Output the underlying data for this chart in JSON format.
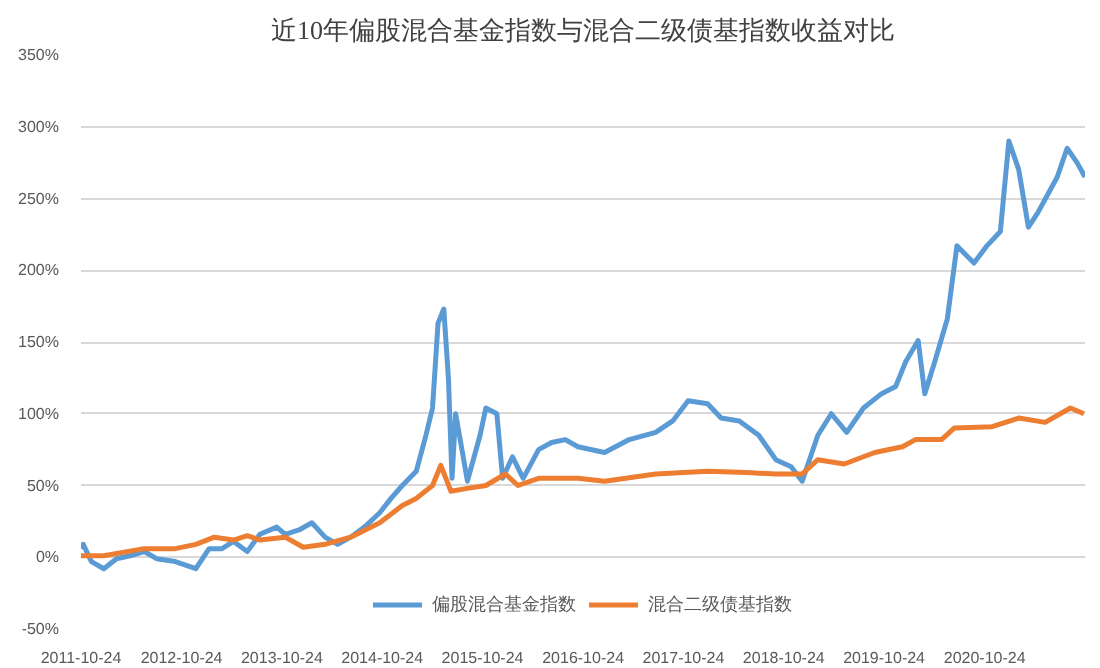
{
  "chart_data": {
    "type": "line",
    "title": "近10年偏股混合基金指数与混合二级债基指数收益对比",
    "xlim": [
      "2011-10-24",
      "2021-10-24"
    ],
    "xticks": [
      "2011-10-24",
      "2012-10-24",
      "2013-10-24",
      "2014-10-24",
      "2015-10-24",
      "2016-10-24",
      "2017-10-24",
      "2018-10-24",
      "2019-10-24",
      "2020-10-24"
    ],
    "ylim": [
      -50,
      350
    ],
    "yticks": [
      {
        "value": -50,
        "label": "-50%"
      },
      {
        "value": 0,
        "label": "0%"
      },
      {
        "value": 50,
        "label": "50%"
      },
      {
        "value": 100,
        "label": "100%"
      },
      {
        "value": 150,
        "label": "150%"
      },
      {
        "value": 200,
        "label": "200%"
      },
      {
        "value": 250,
        "label": "250%"
      },
      {
        "value": 300,
        "label": "300%"
      },
      {
        "value": 350,
        "label": "350%"
      }
    ],
    "grid": "y",
    "legend": "bottom",
    "marker": "none",
    "line_style": "solid",
    "series": [
      {
        "name": "偏股混合基金指数",
        "color": "#5b9bd5",
        "x": [
          "2011-10-24",
          "2011-11-01",
          "2011-12-01",
          "2012-01-15",
          "2012-03-01",
          "2012-04-20",
          "2012-06-10",
          "2012-07-25",
          "2012-10-01",
          "2012-12-15",
          "2013-02-01",
          "2013-03-20",
          "2013-05-01",
          "2013-06-20",
          "2013-08-05",
          "2013-10-05",
          "2013-11-05",
          "2013-12-25",
          "2014-02-10",
          "2014-03-30",
          "2014-05-15",
          "2014-07-01",
          "2014-08-20",
          "2014-10-15",
          "2014-11-25",
          "2015-01-05",
          "2015-02-25",
          "2015-04-01",
          "2015-04-25",
          "2015-05-15",
          "2015-06-05",
          "2015-06-22",
          "2015-07-05",
          "2015-07-18",
          "2015-08-10",
          "2015-08-30",
          "2015-10-15",
          "2015-11-05",
          "2015-12-15",
          "2016-01-05",
          "2016-02-10",
          "2016-03-20",
          "2016-05-15",
          "2016-07-01",
          "2016-08-20",
          "2016-10-05",
          "2017-01-10",
          "2017-04-10",
          "2017-07-15",
          "2017-09-15",
          "2017-11-10",
          "2018-01-20",
          "2018-03-10",
          "2018-05-15",
          "2018-07-25",
          "2018-09-25",
          "2018-11-20",
          "2018-12-30",
          "2019-02-25",
          "2019-04-15",
          "2019-06-10",
          "2019-08-10",
          "2019-10-15",
          "2019-12-05",
          "2020-01-10",
          "2020-02-25",
          "2020-03-20",
          "2020-04-25",
          "2020-06-10",
          "2020-07-15",
          "2020-09-15",
          "2020-11-01",
          "2020-12-20",
          "2021-01-20",
          "2021-02-25",
          "2021-04-01",
          "2021-05-05",
          "2021-07-15",
          "2021-08-20",
          "2021-09-25",
          "2021-10-24"
        ],
        "values": [
          6,
          9,
          -3,
          -8,
          -1,
          1,
          4,
          -1,
          -3,
          -8,
          6,
          6,
          11,
          4,
          16,
          21,
          16,
          19,
          24,
          14,
          9,
          14,
          21,
          31,
          41,
          50,
          60,
          85,
          104,
          163,
          173,
          124,
          55,
          100,
          75,
          53,
          85,
          104,
          100,
          55,
          70,
          55,
          75,
          80,
          82,
          77,
          73,
          82,
          87,
          95,
          109,
          107,
          97,
          95,
          85,
          68,
          63,
          53,
          85,
          100,
          87,
          104,
          114,
          119,
          136,
          151,
          114,
          136,
          166,
          217,
          205,
          217,
          227,
          290,
          270,
          230,
          240,
          265,
          285,
          275,
          265
        ]
      },
      {
        "name": "混合二级债基指数",
        "color": "#ed7d31",
        "x": [
          "2011-10-24",
          "2012-01-15",
          "2012-06-10",
          "2012-10-01",
          "2012-12-15",
          "2013-02-20",
          "2013-05-01",
          "2013-06-20",
          "2013-08-05",
          "2013-11-05",
          "2014-01-10",
          "2014-03-30",
          "2014-07-01",
          "2014-10-15",
          "2015-01-05",
          "2015-02-25",
          "2015-04-25",
          "2015-05-25",
          "2015-07-01",
          "2015-08-30",
          "2015-11-05",
          "2016-01-15",
          "2016-03-01",
          "2016-05-15",
          "2016-08-20",
          "2016-10-05",
          "2017-01-10",
          "2017-07-15",
          "2018-01-20",
          "2018-06-10",
          "2018-09-25",
          "2018-12-30",
          "2019-02-25",
          "2019-06-01",
          "2019-09-20",
          "2019-12-30",
          "2020-02-15",
          "2020-05-20",
          "2020-07-05",
          "2020-11-20",
          "2021-02-25",
          "2021-06-01",
          "2021-09-01",
          "2021-10-20"
        ],
        "values": [
          1,
          1,
          6,
          6,
          9,
          14,
          12,
          15,
          12,
          14,
          7,
          9,
          14,
          24,
          36,
          41,
          50,
          64,
          46,
          48,
          50,
          58,
          50,
          55,
          55,
          55,
          53,
          58,
          60,
          59,
          58,
          58,
          68,
          65,
          73,
          77,
          82,
          82,
          90,
          91,
          97,
          94,
          104,
          100
        ]
      }
    ]
  }
}
